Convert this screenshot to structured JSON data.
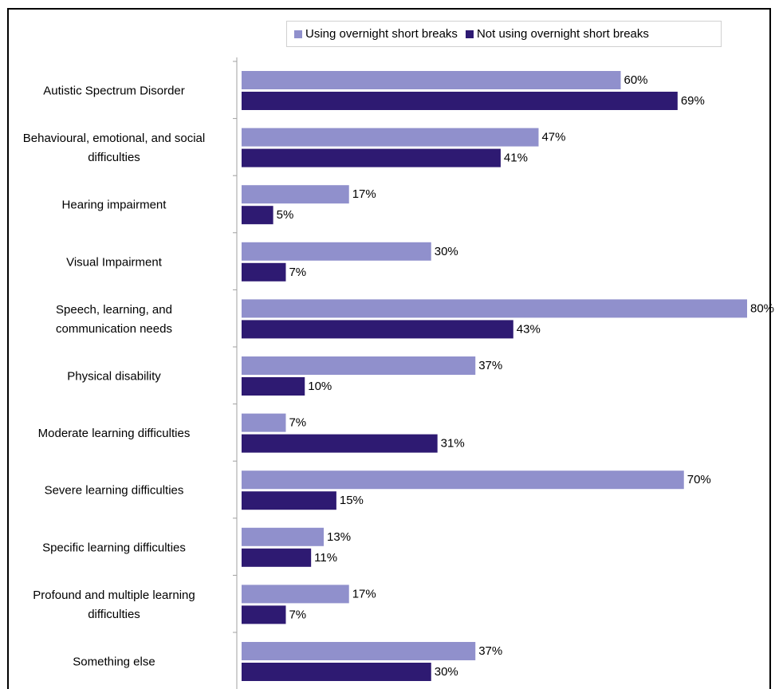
{
  "chart_data": {
    "type": "bar",
    "orientation": "horizontal",
    "categories": [
      "Autistic Spectrum Disorder",
      "Behavioural, emotional, and social difficulties",
      "Hearing impairment",
      "Visual Impairment",
      "Speech, learning, and communication needs",
      "Physical disability",
      "Moderate learning difficulties",
      "Severe learning difficulties",
      "Specific learning difficulties",
      "Profound and multiple learning difficulties",
      "Something else"
    ],
    "category_lines": [
      [
        "Autistic Spectrum Disorder"
      ],
      [
        "Behavioural, emotional, and social",
        "difficulties"
      ],
      [
        "Hearing impairment"
      ],
      [
        "Visual Impairment"
      ],
      [
        "Speech, learning, and",
        "communication needs"
      ],
      [
        "Physical disability"
      ],
      [
        "Moderate learning difficulties"
      ],
      [
        "Severe learning difficulties"
      ],
      [
        "Specific learning difficulties"
      ],
      [
        "Profound and multiple learning",
        "difficulties"
      ],
      [
        "Something else"
      ]
    ],
    "series": [
      {
        "name": "Using overnight short breaks",
        "color": "#9090cc",
        "values": [
          60,
          47,
          17,
          30,
          80,
          37,
          7,
          70,
          13,
          17,
          37
        ]
      },
      {
        "name": "Not using overnight short breaks",
        "color": "#2e1a72",
        "values": [
          69,
          41,
          5,
          7,
          43,
          10,
          31,
          15,
          11,
          7,
          30
        ]
      }
    ],
    "value_suffix": "%",
    "xlim": [
      0,
      80
    ],
    "title": "",
    "xlabel": "",
    "ylabel": "",
    "legend_position": "top-right",
    "grid": false
  }
}
